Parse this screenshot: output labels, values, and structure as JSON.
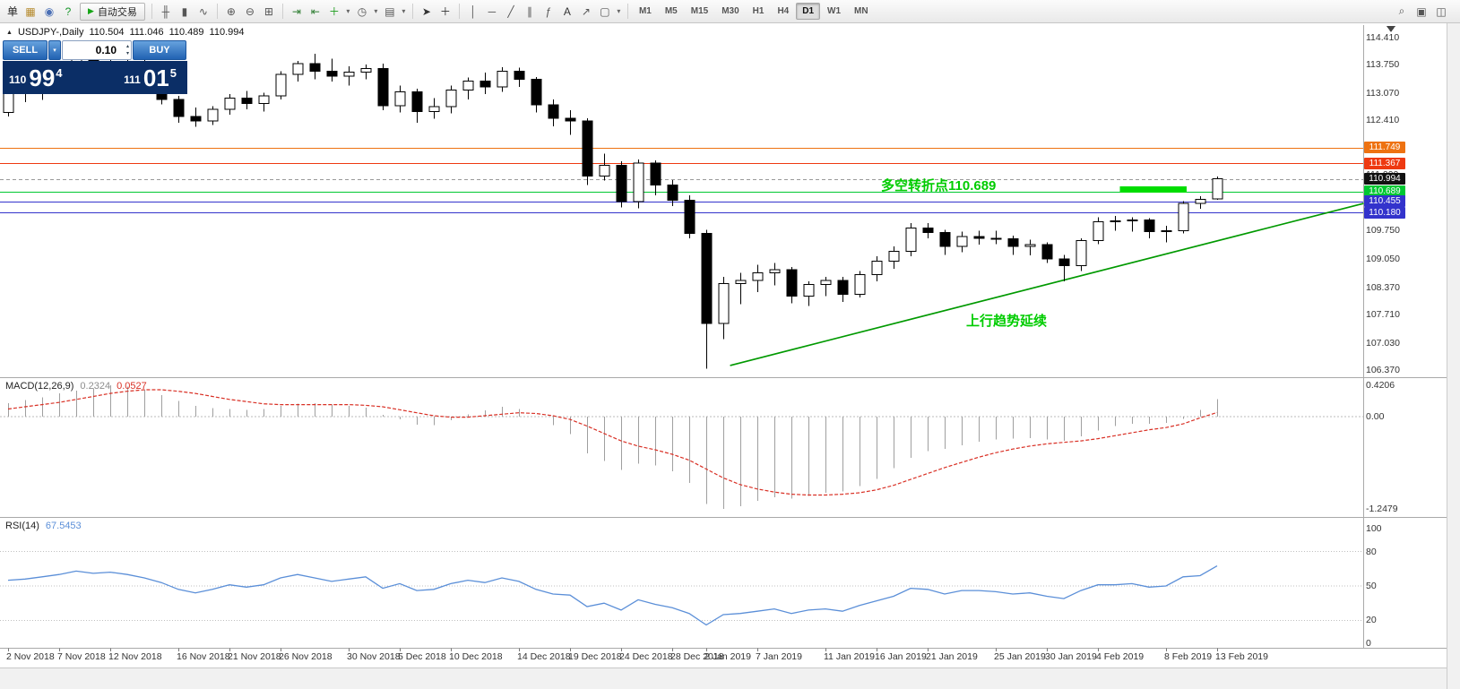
{
  "toolbar": {
    "items": [
      {
        "t": "text",
        "n": "new-order-button",
        "g": "单"
      },
      {
        "t": "icon",
        "n": "new-chart-icon",
        "g": "▦",
        "c": "#b68b2e"
      },
      {
        "t": "icon",
        "n": "profiles-icon",
        "g": "◉",
        "c": "#4a6fb5"
      },
      {
        "t": "icon",
        "n": "help-icon",
        "g": "?",
        "c": "#18962a"
      },
      {
        "t": "button",
        "n": "auto-trading-button",
        "g": "▶",
        "c": "#16a516",
        "label": "自动交易"
      },
      {
        "t": "sep"
      },
      {
        "t": "icon",
        "n": "bar-chart-icon",
        "g": "╫",
        "c": "#555555"
      },
      {
        "t": "icon",
        "n": "candlestick-chart-icon",
        "g": "▮",
        "c": "#555555"
      },
      {
        "t": "icon",
        "n": "line-chart-icon",
        "g": "∿",
        "c": "#555555"
      },
      {
        "t": "sep"
      },
      {
        "t": "icon",
        "n": "zoom-in-icon",
        "g": "⊕",
        "c": "#555555"
      },
      {
        "t": "icon",
        "n": "zoom-out-icon",
        "g": "⊖",
        "c": "#555555"
      },
      {
        "t": "icon",
        "n": "tile-windows-icon",
        "g": "⊞",
        "c": "#555555"
      },
      {
        "t": "sep"
      },
      {
        "t": "icon",
        "n": "auto-scroll-icon",
        "g": "⇥",
        "c": "#2e7d32"
      },
      {
        "t": "icon",
        "n": "chart-shift-icon",
        "g": "⇤",
        "c": "#2e7d32"
      },
      {
        "t": "icondrop",
        "n": "indicators-icon",
        "g": "＋",
        "c": "#1a9c1a"
      },
      {
        "t": "icondrop",
        "n": "periods-icon",
        "g": "◷",
        "c": "#555555"
      },
      {
        "t": "icondrop",
        "n": "templates-icon",
        "g": "▤",
        "c": "#555555"
      },
      {
        "t": "sep"
      },
      {
        "t": "icon",
        "n": "cursor-icon",
        "g": "➤",
        "c": "#333333"
      },
      {
        "t": "icon",
        "n": "crosshair-icon",
        "g": "＋",
        "c": "#333333"
      },
      {
        "t": "sep"
      },
      {
        "t": "icon",
        "n": "vertical-line-icon",
        "g": "│",
        "c": "#555555"
      },
      {
        "t": "icon",
        "n": "horizontal-line-icon",
        "g": "─",
        "c": "#555555"
      },
      {
        "t": "icon",
        "n": "trendline-icon",
        "g": "╱",
        "c": "#555555"
      },
      {
        "t": "icon",
        "n": "channel-icon",
        "g": "∥",
        "c": "#555555"
      },
      {
        "t": "icon",
        "n": "fibonacci-icon",
        "g": "ƒ",
        "c": "#555555"
      },
      {
        "t": "icon",
        "n": "text-icon",
        "g": "A",
        "c": "#333333"
      },
      {
        "t": "icon",
        "n": "arrows-icon",
        "g": "↗",
        "c": "#555555"
      },
      {
        "t": "icondrop",
        "n": "shapes-icon",
        "g": "▢",
        "c": "#555555"
      },
      {
        "t": "sep"
      }
    ],
    "timeframes": [
      "M1",
      "M5",
      "M15",
      "M30",
      "H1",
      "H4",
      "D1",
      "W1",
      "MN"
    ],
    "active_timeframe": "D1",
    "right_items": [
      {
        "n": "search-icon",
        "g": "⌕"
      },
      {
        "n": "new-window-icon",
        "g": "▣"
      },
      {
        "n": "arrange-windows-icon",
        "g": "◫"
      }
    ]
  },
  "symbol_bar": {
    "toggle_glyph": "▲",
    "symbol": "USDJPY-,Daily",
    "open": "110.504",
    "high": "111.046",
    "low": "110.489",
    "close": "110.994"
  },
  "one_click": {
    "sell_label": "SELL",
    "buy_label": "BUY",
    "volume": "0.10",
    "dropdown_glyph": "▾",
    "spin_up": "▴",
    "spin_down": "▾",
    "bid_small": "110",
    "bid_big": "99",
    "bid_pip": "4",
    "ask_small": "111",
    "ask_big": "01",
    "ask_pip": "5"
  },
  "annotations": {
    "pivot_text": "多空转折点110.689",
    "trend_text": "上行趋势延续",
    "color": "#00cc00"
  },
  "chart_data": {
    "type": "candlestick",
    "title": "USDJPY-,Daily",
    "symbol": "USDJPY",
    "timeframe": "Daily",
    "price_axis": {
      "min": 106.37,
      "max": 114.41,
      "labels": [
        "114.410",
        "113.750",
        "113.070",
        "112.410",
        "111.750",
        "111.090",
        "110.410",
        "109.750",
        "109.050",
        "108.370",
        "107.710",
        "107.030",
        "106.370"
      ]
    },
    "hlines": [
      {
        "price": 111.749,
        "color": "#ee7211",
        "style": "solid",
        "label": "111.749"
      },
      {
        "price": 111.367,
        "color": "#ee3911",
        "style": "solid",
        "label": "111.367"
      },
      {
        "price": 110.994,
        "color": "#999999",
        "style": "dashed",
        "label": "110.994",
        "badge": "#111111"
      },
      {
        "price": 110.689,
        "color": "#00c832",
        "style": "solid",
        "label": "110.689"
      },
      {
        "price": 110.455,
        "color": "#3333cc",
        "style": "solid",
        "label": "110.455"
      },
      {
        "price": 110.18,
        "color": "#3333cc",
        "style": "solid",
        "label": "110.180"
      }
    ],
    "trendline": {
      "bar1": 42.4,
      "price1": 106.48,
      "bar2": 79.6,
      "price2": 110.4,
      "color": "#009900"
    },
    "highlight": {
      "bar_from": 65.3,
      "bar_to": 69.2,
      "price": 110.74,
      "color": "#00dd00"
    },
    "candles": [
      [
        112.6,
        113.25,
        112.5,
        113.15
      ],
      [
        113.15,
        113.35,
        112.85,
        113.1
      ],
      [
        113.1,
        113.45,
        112.9,
        113.38
      ],
      [
        113.38,
        113.82,
        113.15,
        113.52
      ],
      [
        113.52,
        114.0,
        113.35,
        113.92
      ],
      [
        113.92,
        114.06,
        113.55,
        113.78
      ],
      [
        113.78,
        114.1,
        113.58,
        113.84
      ],
      [
        113.84,
        114.18,
        113.55,
        113.7
      ],
      [
        113.7,
        113.92,
        113.35,
        113.45
      ],
      [
        113.45,
        113.52,
        112.8,
        112.92
      ],
      [
        112.92,
        113.0,
        112.35,
        112.5
      ],
      [
        112.5,
        112.72,
        112.25,
        112.4
      ],
      [
        112.4,
        112.75,
        112.3,
        112.68
      ],
      [
        112.68,
        113.05,
        112.55,
        112.95
      ],
      [
        112.95,
        113.12,
        112.68,
        112.82
      ],
      [
        112.82,
        113.08,
        112.62,
        113.0
      ],
      [
        113.0,
        113.6,
        112.92,
        113.52
      ],
      [
        113.52,
        113.85,
        113.35,
        113.78
      ],
      [
        113.78,
        114.02,
        113.4,
        113.6
      ],
      [
        113.6,
        113.9,
        113.35,
        113.48
      ],
      [
        113.48,
        113.72,
        113.25,
        113.58
      ],
      [
        113.58,
        113.76,
        113.4,
        113.66
      ],
      [
        113.66,
        113.78,
        112.65,
        112.76
      ],
      [
        112.76,
        113.25,
        112.6,
        113.1
      ],
      [
        113.1,
        113.18,
        112.35,
        112.62
      ],
      [
        112.62,
        112.95,
        112.45,
        112.74
      ],
      [
        112.74,
        113.25,
        112.58,
        113.14
      ],
      [
        113.14,
        113.45,
        112.92,
        113.36
      ],
      [
        113.36,
        113.56,
        113.05,
        113.22
      ],
      [
        113.22,
        113.7,
        113.1,
        113.6
      ],
      [
        113.6,
        113.68,
        113.22,
        113.4
      ],
      [
        113.4,
        113.46,
        112.6,
        112.78
      ],
      [
        112.78,
        112.92,
        112.26,
        112.46
      ],
      [
        112.46,
        112.66,
        112.06,
        112.4
      ],
      [
        112.4,
        112.46,
        110.85,
        111.06
      ],
      [
        111.06,
        111.6,
        110.95,
        111.32
      ],
      [
        111.32,
        111.42,
        110.3,
        110.44
      ],
      [
        110.44,
        111.46,
        110.28,
        111.38
      ],
      [
        111.38,
        111.44,
        110.6,
        110.84
      ],
      [
        110.84,
        110.96,
        110.34,
        110.48
      ],
      [
        110.48,
        110.6,
        109.56,
        109.68
      ],
      [
        109.68,
        109.76,
        106.4,
        107.5
      ],
      [
        107.5,
        108.62,
        107.12,
        108.46
      ],
      [
        108.46,
        108.72,
        107.96,
        108.54
      ],
      [
        108.54,
        108.92,
        108.26,
        108.72
      ],
      [
        108.72,
        108.96,
        108.42,
        108.8
      ],
      [
        108.8,
        108.86,
        107.98,
        108.16
      ],
      [
        108.16,
        108.52,
        107.92,
        108.44
      ],
      [
        108.44,
        108.62,
        108.16,
        108.54
      ],
      [
        108.54,
        108.62,
        108.02,
        108.2
      ],
      [
        108.2,
        108.76,
        108.12,
        108.68
      ],
      [
        108.68,
        109.12,
        108.52,
        109.0
      ],
      [
        109.0,
        109.36,
        108.82,
        109.24
      ],
      [
        109.24,
        109.92,
        109.12,
        109.8
      ],
      [
        109.8,
        109.92,
        109.56,
        109.7
      ],
      [
        109.7,
        109.76,
        109.16,
        109.36
      ],
      [
        109.36,
        109.72,
        109.22,
        109.6
      ],
      [
        109.6,
        109.74,
        109.4,
        109.56
      ],
      [
        109.56,
        109.74,
        109.42,
        109.54
      ],
      [
        109.54,
        109.62,
        109.16,
        109.36
      ],
      [
        109.36,
        109.52,
        109.14,
        109.4
      ],
      [
        109.4,
        109.46,
        108.96,
        109.06
      ],
      [
        109.06,
        109.16,
        108.52,
        108.9
      ],
      [
        108.9,
        109.56,
        108.76,
        109.5
      ],
      [
        109.5,
        110.06,
        109.42,
        109.96
      ],
      [
        109.96,
        110.1,
        109.74,
        109.98
      ],
      [
        109.98,
        110.06,
        109.72,
        110.0
      ],
      [
        110.0,
        110.04,
        109.56,
        109.72
      ],
      [
        109.72,
        109.86,
        109.46,
        109.74
      ],
      [
        109.74,
        110.46,
        109.68,
        110.4
      ],
      [
        110.4,
        110.57,
        110.27,
        110.5
      ],
      [
        110.504,
        111.046,
        110.489,
        110.994
      ]
    ],
    "date_labels": [
      [
        0,
        "2 Nov 2018"
      ],
      [
        3,
        "7 Nov 2018"
      ],
      [
        6,
        "12 Nov 2018"
      ],
      [
        10,
        "16 Nov 2018"
      ],
      [
        13,
        "21 Nov 2018"
      ],
      [
        16,
        "26 Nov 2018"
      ],
      [
        20,
        "30 Nov 2018"
      ],
      [
        23,
        "5 Dec 2018"
      ],
      [
        26,
        "10 Dec 2018"
      ],
      [
        30,
        "14 Dec 2018"
      ],
      [
        33,
        "19 Dec 2018"
      ],
      [
        36,
        "24 Dec 2018"
      ],
      [
        39,
        "28 Dec 2018"
      ],
      [
        41,
        "2 Jan 2019"
      ],
      [
        44,
        "7 Jan 2019"
      ],
      [
        48,
        "11 Jan 2019"
      ],
      [
        51,
        "16 Jan 2019"
      ],
      [
        54,
        "21 Jan 2019"
      ],
      [
        58,
        "25 Jan 2019"
      ],
      [
        61,
        "30 Jan 2019"
      ],
      [
        64,
        "4 Feb 2019"
      ],
      [
        68,
        "8 Feb 2019"
      ],
      [
        71,
        "13 Feb 2019"
      ]
    ],
    "macd": {
      "title": "MACD(12,26,9)",
      "value": "0.2324",
      "signal_value": "0.0527",
      "axis": [
        {
          "v": 0.4206,
          "label": "0.4206"
        },
        {
          "v": 0,
          "label": "0.00"
        },
        {
          "v": -1.2479,
          "label": "-1.2479"
        }
      ],
      "hist": [
        0.18,
        0.22,
        0.26,
        0.31,
        0.35,
        0.38,
        0.4206,
        0.4,
        0.36,
        0.29,
        0.21,
        0.14,
        0.11,
        0.1,
        0.09,
        0.1,
        0.14,
        0.17,
        0.18,
        0.16,
        0.14,
        0.12,
        0.02,
        -0.04,
        -0.11,
        -0.12,
        -0.05,
        0.03,
        0.08,
        0.13,
        0.1,
        0.0,
        -0.12,
        -0.24,
        -0.5,
        -0.6,
        -0.72,
        -0.64,
        -0.66,
        -0.74,
        -0.9,
        -1.18,
        -1.2479,
        -1.21,
        -1.14,
        -1.09,
        -1.11,
        -1.07,
        -1.03,
        -1.01,
        -0.94,
        -0.84,
        -0.7,
        -0.56,
        -0.47,
        -0.44,
        -0.39,
        -0.34,
        -0.31,
        -0.3,
        -0.29,
        -0.31,
        -0.33,
        -0.27,
        -0.19,
        -0.13,
        -0.1,
        -0.1,
        -0.09,
        -0.03,
        0.09,
        0.2324
      ],
      "signal": [
        0.1,
        0.13,
        0.16,
        0.19,
        0.23,
        0.27,
        0.31,
        0.34,
        0.36,
        0.36,
        0.34,
        0.31,
        0.27,
        0.23,
        0.2,
        0.17,
        0.16,
        0.16,
        0.16,
        0.16,
        0.16,
        0.15,
        0.13,
        0.09,
        0.05,
        0.01,
        -0.01,
        -0.01,
        0.01,
        0.03,
        0.05,
        0.04,
        0.01,
        -0.04,
        -0.13,
        -0.23,
        -0.33,
        -0.4,
        -0.45,
        -0.51,
        -0.59,
        -0.71,
        -0.83,
        -0.92,
        -0.98,
        -1.02,
        -1.05,
        -1.06,
        -1.06,
        -1.05,
        -1.03,
        -0.99,
        -0.93,
        -0.85,
        -0.77,
        -0.69,
        -0.62,
        -0.55,
        -0.49,
        -0.44,
        -0.4,
        -0.37,
        -0.35,
        -0.33,
        -0.3,
        -0.26,
        -0.22,
        -0.18,
        -0.15,
        -0.1,
        -0.02,
        0.0527
      ]
    },
    "rsi": {
      "title": "RSI(14)",
      "value": "67.5453",
      "levels": [
        80,
        50,
        20
      ],
      "axis": [
        {
          "v": 100,
          "label": "100"
        },
        {
          "v": 80,
          "label": "80"
        },
        {
          "v": 50,
          "label": "50"
        },
        {
          "v": 20,
          "label": "20"
        },
        {
          "v": 0,
          "label": "0"
        }
      ],
      "values": [
        55,
        56,
        58,
        60,
        63,
        61,
        62,
        60,
        57,
        53,
        47,
        44,
        47,
        51,
        49,
        51,
        57,
        60,
        57,
        54,
        56,
        58,
        48,
        52,
        46,
        47,
        52,
        55,
        53,
        57,
        54,
        47,
        43,
        42,
        32,
        35,
        29,
        38,
        34,
        31,
        26,
        16,
        25,
        26,
        28,
        30,
        26,
        29,
        30,
        28,
        33,
        37,
        41,
        48,
        47,
        43,
        46,
        46,
        45,
        43,
        44,
        41,
        39,
        46,
        51,
        51,
        52,
        49,
        50,
        58,
        59,
        67.5
      ]
    }
  }
}
